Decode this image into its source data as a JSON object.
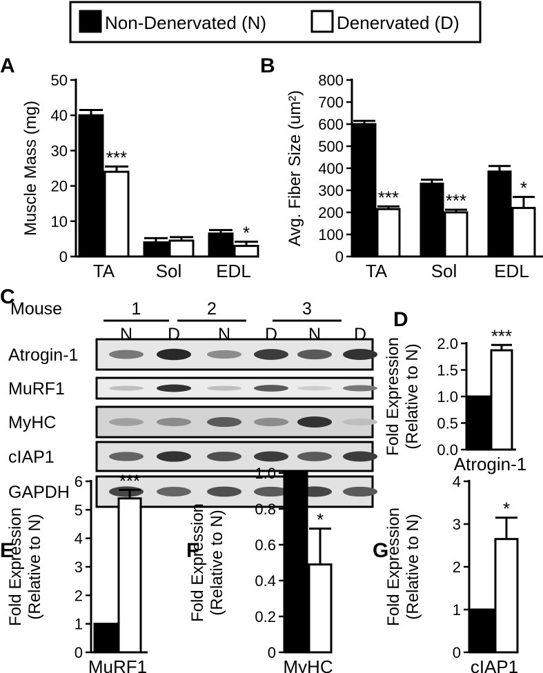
{
  "legend": {
    "items": [
      {
        "label": "Non-Denervated (N)",
        "color": "#000000"
      },
      {
        "label": "Denervated (D)",
        "color": "#ffffff"
      }
    ]
  },
  "chart_data": [
    {
      "panel": "A",
      "type": "bar",
      "ylabel": "Muscle Mass (mg)",
      "ylim": [
        0,
        50
      ],
      "yticks": [
        0,
        10,
        20,
        30,
        40,
        50
      ],
      "categories": [
        "TA",
        "Sol",
        "EDL"
      ],
      "series": [
        {
          "name": "Non-Denervated (N)",
          "values": [
            40,
            4,
            6.5
          ],
          "errors": [
            1.5,
            1.2,
            1.0
          ]
        },
        {
          "name": "Denervated (D)",
          "values": [
            24,
            4.5,
            3
          ],
          "errors": [
            1.5,
            1.0,
            1.2
          ]
        }
      ],
      "annotations": [
        "***",
        "",
        "*"
      ]
    },
    {
      "panel": "B",
      "type": "bar",
      "ylabel": "Avg. Fiber Size (um²)",
      "ylim": [
        0,
        800
      ],
      "yticks": [
        0,
        100,
        200,
        300,
        400,
        500,
        600,
        700,
        800
      ],
      "categories": [
        "TA",
        "Sol",
        "EDL"
      ],
      "series": [
        {
          "name": "Non-Denervated (N)",
          "values": [
            600,
            330,
            385
          ],
          "errors": [
            15,
            18,
            25
          ]
        },
        {
          "name": "Denervated (D)",
          "values": [
            215,
            200,
            220
          ],
          "errors": [
            12,
            12,
            50
          ]
        }
      ],
      "annotations": [
        "***",
        "***",
        "*"
      ]
    },
    {
      "panel": "D",
      "type": "bar",
      "ylabel": "Fold Expression (Relative to N)",
      "ylim": [
        0,
        2.0
      ],
      "yticks": [
        "0.0",
        "0.5",
        "1.0",
        "1.5",
        "2.0"
      ],
      "categories": [
        "Atrogin-1"
      ],
      "series": [
        {
          "name": "Non-Denervated (N)",
          "values": [
            1.0
          ],
          "errors": [
            0
          ]
        },
        {
          "name": "Denervated (D)",
          "values": [
            1.87
          ],
          "errors": [
            0.1
          ]
        }
      ],
      "annotations": [
        "***"
      ]
    },
    {
      "panel": "E",
      "type": "bar",
      "ylabel": "Fold Expression (Relative to N)",
      "ylim": [
        0,
        6
      ],
      "yticks": [
        0,
        1,
        2,
        3,
        4,
        5,
        6
      ],
      "categories": [
        "MuRF1"
      ],
      "series": [
        {
          "name": "Non-Denervated (N)",
          "values": [
            1.0
          ],
          "errors": [
            0
          ]
        },
        {
          "name": "Denervated (D)",
          "values": [
            5.4
          ],
          "errors": [
            0.3
          ]
        }
      ],
      "annotations": [
        "***"
      ]
    },
    {
      "panel": "F",
      "type": "bar",
      "ylabel": "Fold Expression (Relative to N)",
      "ylim": [
        0,
        1.0
      ],
      "yticks": [
        "0",
        "0.2",
        "0.4",
        "0.6",
        "0.8",
        "1.0"
      ],
      "categories": [
        "MyHC"
      ],
      "series": [
        {
          "name": "Non-Denervated (N)",
          "values": [
            1.0
          ],
          "errors": [
            0
          ]
        },
        {
          "name": "Denervated (D)",
          "values": [
            0.49
          ],
          "errors": [
            0.2
          ]
        }
      ],
      "annotations": [
        "*"
      ]
    },
    {
      "panel": "G",
      "type": "bar",
      "ylabel": "Fold Expression (Relative to N)",
      "ylim": [
        0,
        4
      ],
      "yticks": [
        0,
        1,
        2,
        3,
        4
      ],
      "categories": [
        "cIAP1"
      ],
      "series": [
        {
          "name": "Non-Denervated (N)",
          "values": [
            1.0
          ],
          "errors": [
            0
          ]
        },
        {
          "name": "Denervated (D)",
          "values": [
            2.65
          ],
          "errors": [
            0.5
          ]
        }
      ],
      "annotations": [
        "*"
      ]
    }
  ],
  "blot": {
    "panel": "C",
    "mouse_label": "Mouse",
    "mice": [
      "1",
      "2",
      "3"
    ],
    "lanes": [
      "N",
      "D",
      "N",
      "D",
      "N",
      "D"
    ],
    "rows": [
      {
        "label": "Atrogin-1",
        "intensities": [
          0.55,
          0.95,
          0.45,
          0.85,
          0.7,
          0.9
        ],
        "background": "#e6e6e6"
      },
      {
        "label": "MuRF1",
        "intensities": [
          0.2,
          0.9,
          0.2,
          0.7,
          0.12,
          0.55
        ],
        "background": "#ececec"
      },
      {
        "label": "MyHC",
        "intensities": [
          0.35,
          0.45,
          0.7,
          0.45,
          0.9,
          0.2
        ],
        "background": "#d4d4d4"
      },
      {
        "label": "cIAP1",
        "intensities": [
          0.65,
          0.9,
          0.75,
          0.85,
          0.7,
          0.85
        ],
        "background": "#e0e0e0"
      },
      {
        "label": "GAPDH",
        "intensities": [
          0.8,
          0.65,
          0.75,
          0.7,
          0.8,
          0.7
        ],
        "background": "#e2e2e2"
      }
    ]
  }
}
